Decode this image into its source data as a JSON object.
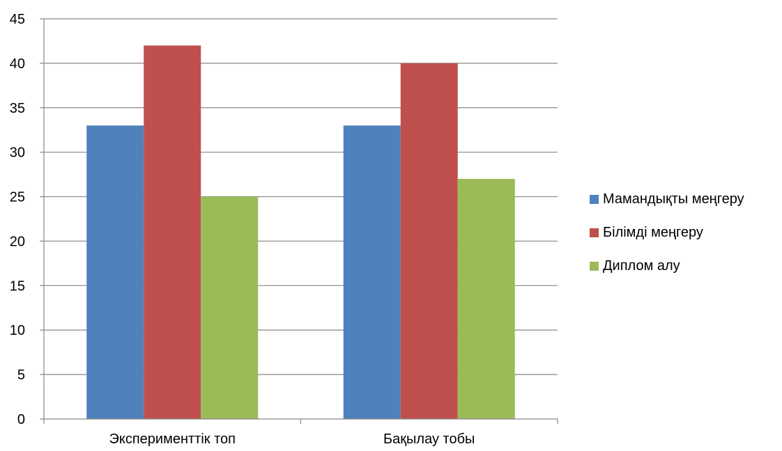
{
  "chart_data": {
    "type": "bar",
    "title": "",
    "xlabel": "",
    "ylabel": "",
    "categories": [
      "Эксперименттік топ",
      "Бақылау тобы"
    ],
    "series": [
      {
        "name": "Мамандықты меңгеру",
        "values": [
          33,
          33
        ],
        "color": "#4F81BD"
      },
      {
        "name": "Білімді меңгеру",
        "values": [
          42,
          40
        ],
        "color": "#C0504D"
      },
      {
        "name": "Диплом алу",
        "values": [
          25,
          27
        ],
        "color": "#9BBB59"
      }
    ],
    "ylim": [
      0,
      45
    ],
    "yticks": [
      0,
      5,
      10,
      15,
      20,
      25,
      30,
      35,
      40,
      45
    ],
    "grid": true,
    "legend_position": "right"
  }
}
